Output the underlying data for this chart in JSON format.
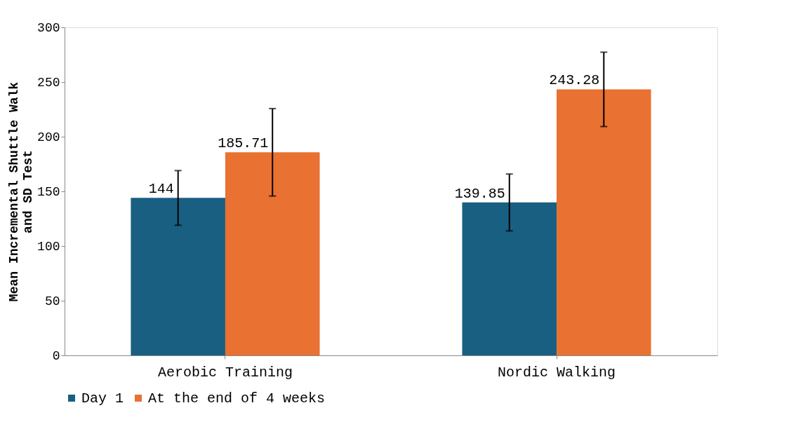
{
  "chart_data": {
    "type": "bar",
    "ylabel": "Mean Incremental Shuttle Walk and SD Test",
    "categories": [
      "Aerobic Training",
      "Nordic Walking"
    ],
    "series": [
      {
        "name": "Day 1",
        "color": "#185f82",
        "values": [
          144,
          139.85
        ],
        "errors": [
          25,
          26
        ]
      },
      {
        "name": "At the end of 4 weeks",
        "color": "#e97132",
        "values": [
          185.71,
          243.28
        ],
        "errors": [
          40,
          34
        ]
      }
    ],
    "ylim": [
      0,
      300
    ],
    "yticks": [
      0,
      50,
      100,
      150,
      200,
      250,
      300
    ],
    "grid": false,
    "legend": "bottom",
    "data_labels": true
  }
}
